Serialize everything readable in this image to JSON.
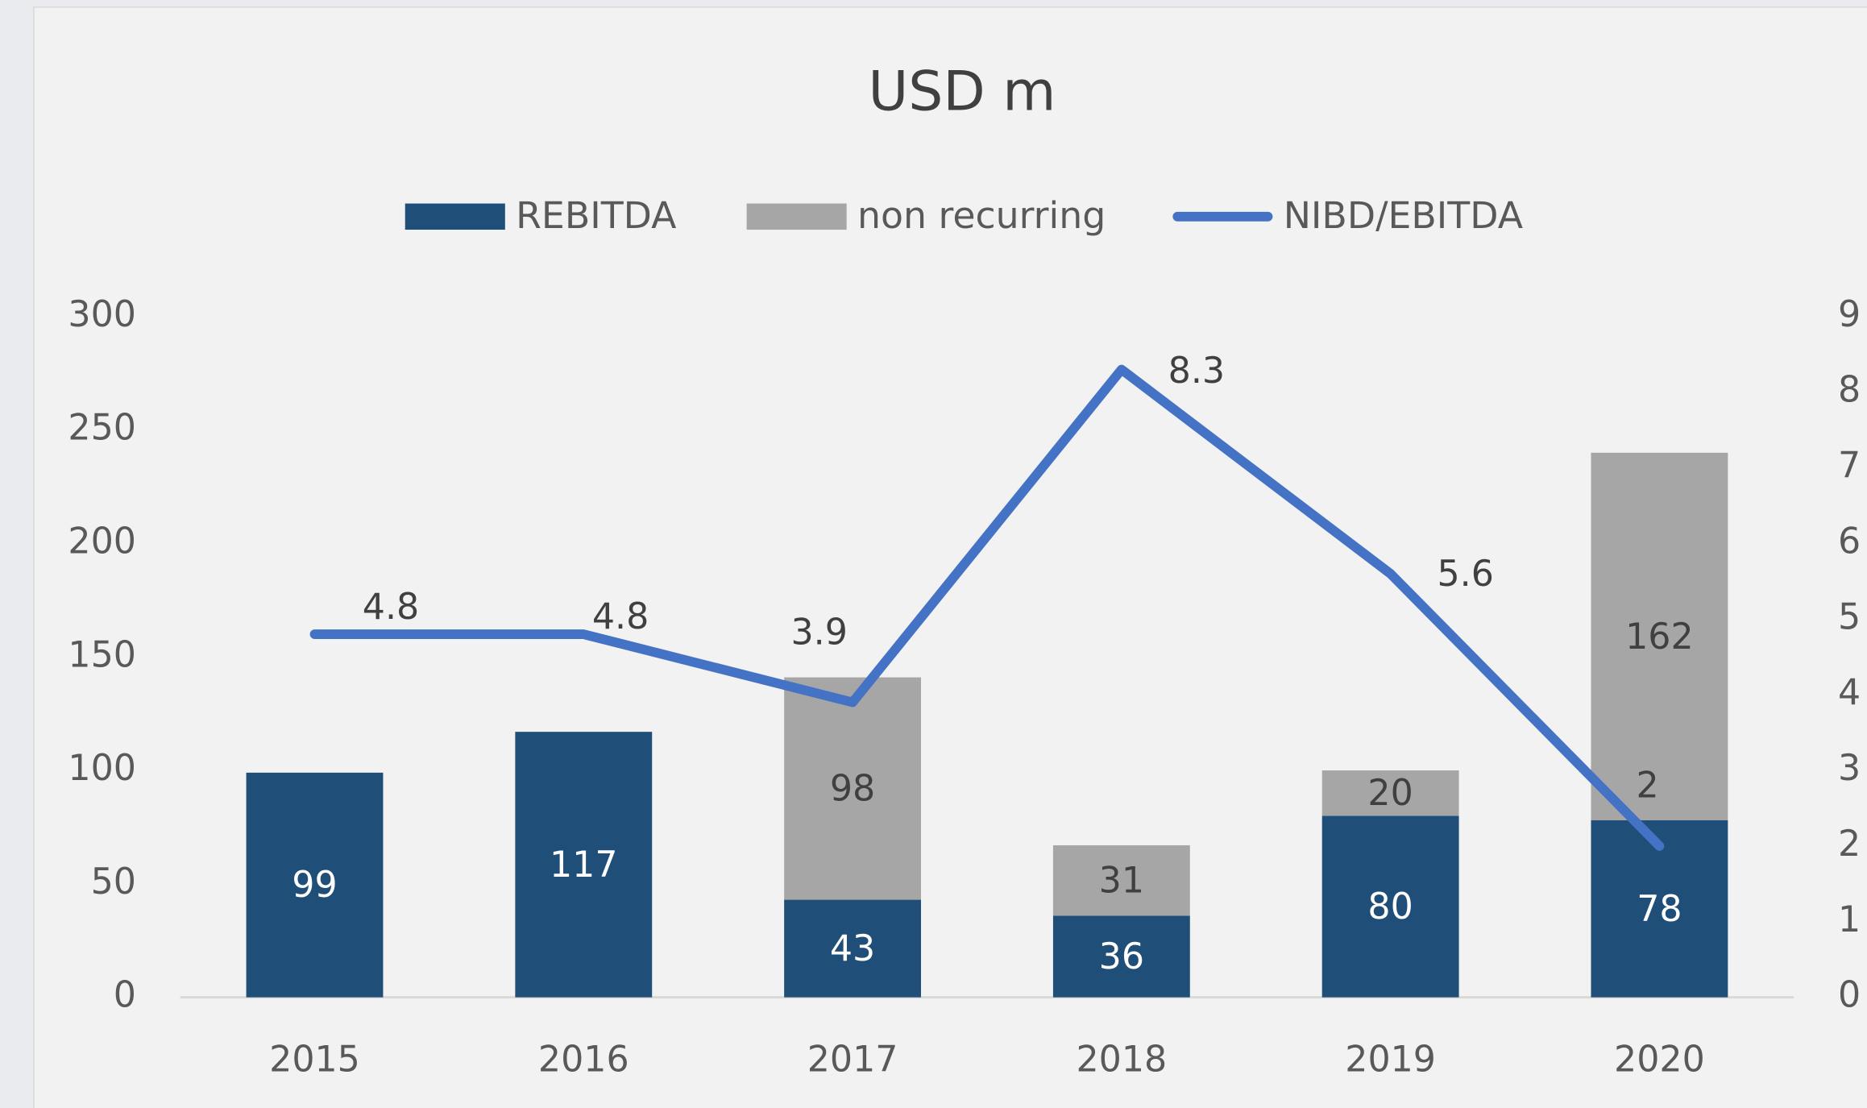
{
  "chart_data": {
    "type": "bar_line",
    "title": "USD m",
    "categories": [
      "2015",
      "2016",
      "2017",
      "2018",
      "2019",
      "2020"
    ],
    "series": [
      {
        "name": "REBITDA",
        "color": "#1f4e79",
        "type": "bar",
        "values": [
          99,
          117,
          43,
          36,
          80,
          78
        ]
      },
      {
        "name": "non recurring",
        "color": "#a6a6a6",
        "type": "bar",
        "values": [
          null,
          null,
          98,
          31,
          20,
          162
        ]
      },
      {
        "name": "NIBD/EBITDA",
        "color": "#4472c4",
        "type": "line",
        "axis": "y2",
        "values": [
          4.8,
          4.8,
          3.9,
          8.3,
          5.6,
          2.0
        ],
        "value_labels": [
          "4.8",
          "4.8",
          "3.9",
          "8.3",
          "5.6",
          "2"
        ]
      }
    ],
    "stacked": true,
    "ylim": [
      0,
      300
    ],
    "yticks": [
      0,
      50,
      100,
      150,
      200,
      250,
      300
    ],
    "y2lim": [
      0,
      9
    ],
    "y2ticks": [
      0,
      1,
      2,
      3,
      4,
      5,
      6,
      7,
      8,
      9
    ],
    "grid": false,
    "legend": "top"
  }
}
